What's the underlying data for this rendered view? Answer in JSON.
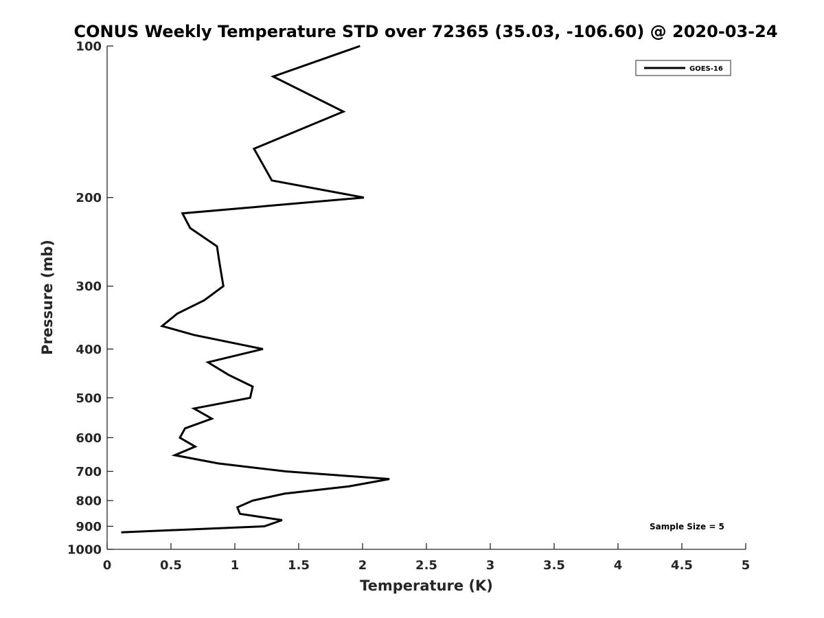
{
  "chart_data": {
    "type": "line",
    "title": "CONUS Weekly Temperature STD over 72365 (35.03, -106.60) @ 2020-03-24",
    "xlabel": "Temperature (K)",
    "ylabel": "Pressure (mb)",
    "xlim": [
      0,
      5
    ],
    "ylim": [
      100,
      1000
    ],
    "y_scale": "log",
    "y_reversed": true,
    "x_ticks": [
      "0",
      "0.5",
      "1",
      "1.5",
      "2",
      "2.5",
      "3",
      "3.5",
      "4",
      "4.5",
      "5"
    ],
    "y_ticks": [
      "100",
      "200",
      "300",
      "400",
      "500",
      "600",
      "700",
      "800",
      "900",
      "1000"
    ],
    "grid": false,
    "legend_position": "top-right",
    "annotation": "Sample Size = 5",
    "series": [
      {
        "name": "GOES-16",
        "color": "#000000",
        "points": [
          [
            1.98,
            100
          ],
          [
            1.3,
            115
          ],
          [
            1.85,
            135
          ],
          [
            1.15,
            160
          ],
          [
            1.29,
            185
          ],
          [
            2.01,
            200
          ],
          [
            0.59,
            215
          ],
          [
            0.65,
            230
          ],
          [
            0.86,
            250
          ],
          [
            0.88,
            270
          ],
          [
            0.91,
            300
          ],
          [
            0.76,
            320
          ],
          [
            0.55,
            340
          ],
          [
            0.43,
            360
          ],
          [
            0.68,
            375
          ],
          [
            1.22,
            400
          ],
          [
            0.79,
            425
          ],
          [
            0.95,
            450
          ],
          [
            1.14,
            475
          ],
          [
            1.12,
            500
          ],
          [
            0.68,
            525
          ],
          [
            0.82,
            550
          ],
          [
            0.61,
            575
          ],
          [
            0.57,
            600
          ],
          [
            0.69,
            625
          ],
          [
            0.53,
            650
          ],
          [
            0.87,
            675
          ],
          [
            1.4,
            700
          ],
          [
            2.21,
            725
          ],
          [
            1.89,
            750
          ],
          [
            1.39,
            775
          ],
          [
            1.14,
            800
          ],
          [
            1.02,
            825
          ],
          [
            1.04,
            850
          ],
          [
            1.37,
            875
          ],
          [
            1.23,
            900
          ],
          [
            0.11,
            925
          ]
        ]
      }
    ]
  }
}
